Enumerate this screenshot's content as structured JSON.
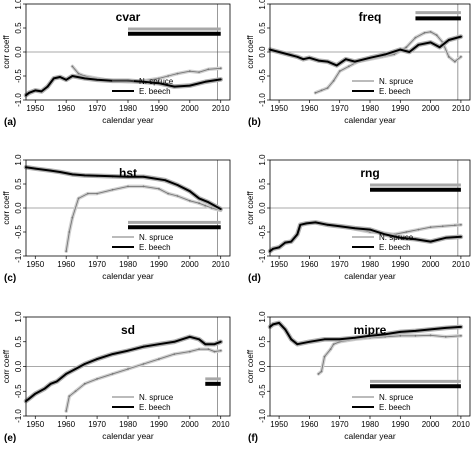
{
  "chart_data": [
    {
      "type": "line",
      "panel_label": "(a)",
      "title": "cvar",
      "xlabel": "calendar year",
      "ylabel": "corr coeff",
      "xlim": [
        1947,
        2013
      ],
      "ylim": [
        -1.0,
        1.0
      ],
      "xticks": [
        "1950",
        "1960",
        "1970",
        "1980",
        "1990",
        "2000",
        "2010"
      ],
      "yticks": [
        "-1.0",
        "-0.5",
        "0.0",
        "0.5",
        "1.0"
      ],
      "vline_year": 2009,
      "legend": {
        "position": "bottom-right"
      },
      "series": [
        {
          "name": "N. spruce",
          "x": [
            1962,
            1964,
            1966,
            1970,
            1975,
            1980,
            1985,
            1990,
            1993,
            1996,
            2000,
            2003,
            2006,
            2010
          ],
          "y": [
            -0.3,
            -0.45,
            -0.5,
            -0.55,
            -0.6,
            -0.62,
            -0.6,
            -0.55,
            -0.5,
            -0.45,
            -0.4,
            -0.42,
            -0.36,
            -0.34
          ]
        },
        {
          "name": "E. beech",
          "x": [
            1947,
            1948,
            1950,
            1952,
            1954,
            1956,
            1958,
            1960,
            1962,
            1966,
            1970,
            1975,
            1980,
            1985,
            1990,
            1995,
            2000,
            2005,
            2010
          ],
          "y": [
            -0.9,
            -0.85,
            -0.8,
            -0.82,
            -0.72,
            -0.55,
            -0.52,
            -0.58,
            -0.5,
            -0.55,
            -0.58,
            -0.6,
            -0.6,
            -0.62,
            -0.65,
            -0.72,
            -0.7,
            -0.62,
            -0.57
          ]
        }
      ],
      "significance_bars": [
        {
          "series": "N. spruce",
          "x": [
            1980,
            2010
          ],
          "y": 0.48
        },
        {
          "series": "E. beech",
          "x": [
            1980,
            2010
          ],
          "y": 0.38
        }
      ]
    },
    {
      "type": "line",
      "panel_label": "(b)",
      "title": "freq",
      "xlabel": "calendar year",
      "ylabel": "corr coeff",
      "xlim": [
        1947,
        2013
      ],
      "ylim": [
        -1.0,
        1.0
      ],
      "xticks": [
        "1950",
        "1960",
        "1970",
        "1980",
        "1990",
        "2000",
        "2010"
      ],
      "yticks": [
        "-1.0",
        "-0.5",
        "0.0",
        "0.5",
        "1.0"
      ],
      "vline_year": 2009,
      "legend": {
        "position": "bottom-right"
      },
      "series": [
        {
          "name": "N. spruce",
          "x": [
            1962,
            1964,
            1966,
            1968,
            1970,
            1973,
            1976,
            1980,
            1984,
            1988,
            1992,
            1995,
            1998,
            2000,
            2002,
            2004,
            2006,
            2008,
            2010
          ],
          "y": [
            -0.85,
            -0.8,
            -0.75,
            -0.6,
            -0.4,
            -0.3,
            -0.2,
            -0.15,
            -0.1,
            -0.05,
            0.1,
            0.3,
            0.4,
            0.42,
            0.35,
            0.2,
            -0.1,
            -0.2,
            -0.1
          ]
        },
        {
          "name": "E. beech",
          "x": [
            1947,
            1950,
            1953,
            1956,
            1958,
            1960,
            1963,
            1966,
            1969,
            1972,
            1975,
            1980,
            1985,
            1990,
            1993,
            1996,
            2000,
            2003,
            2006,
            2010
          ],
          "y": [
            0.05,
            0.0,
            -0.05,
            -0.1,
            -0.15,
            -0.12,
            -0.18,
            -0.2,
            -0.28,
            -0.15,
            -0.2,
            -0.12,
            -0.05,
            0.05,
            0.0,
            0.15,
            0.2,
            0.1,
            0.25,
            0.32
          ]
        }
      ],
      "significance_bars": [
        {
          "series": "N. spruce",
          "x": [
            1995,
            2010
          ],
          "y": 0.82
        },
        {
          "series": "E. beech",
          "x": [
            1995,
            2010
          ],
          "y": 0.7
        }
      ]
    },
    {
      "type": "line",
      "panel_label": "(c)",
      "title": "hst",
      "xlabel": "calendar year",
      "ylabel": "corr coeff",
      "xlim": [
        1947,
        2013
      ],
      "ylim": [
        -1.0,
        1.0
      ],
      "xticks": [
        "1950",
        "1960",
        "1970",
        "1980",
        "1990",
        "2000",
        "2010"
      ],
      "yticks": [
        "-1.0",
        "-0.5",
        "0.0",
        "0.5",
        "1.0"
      ],
      "vline_year": 2009,
      "legend": {
        "position": "bottom-right"
      },
      "series": [
        {
          "name": "N. spruce",
          "x": [
            1960,
            1961,
            1962,
            1964,
            1967,
            1970,
            1975,
            1980,
            1985,
            1990,
            1993,
            1996,
            2000,
            2003,
            2005,
            2007,
            2010
          ],
          "y": [
            -0.9,
            -0.5,
            -0.2,
            0.2,
            0.3,
            0.3,
            0.38,
            0.45,
            0.45,
            0.4,
            0.3,
            0.25,
            0.15,
            0.1,
            0.05,
            0.0,
            -0.05
          ]
        },
        {
          "name": "E. beech",
          "x": [
            1947,
            1950,
            1955,
            1958,
            1962,
            1966,
            1970,
            1975,
            1980,
            1985,
            1988,
            1992,
            1996,
            2000,
            2003,
            2006,
            2008,
            2010
          ],
          "y": [
            0.85,
            0.82,
            0.78,
            0.75,
            0.7,
            0.68,
            0.67,
            0.66,
            0.65,
            0.65,
            0.62,
            0.58,
            0.48,
            0.35,
            0.2,
            0.12,
            0.05,
            -0.02
          ]
        }
      ],
      "significance_bars": [
        {
          "series": "N. spruce",
          "x": [
            1980,
            2010
          ],
          "y": -0.3
        },
        {
          "series": "E. beech",
          "x": [
            1980,
            2010
          ],
          "y": -0.4
        }
      ]
    },
    {
      "type": "line",
      "panel_label": "(d)",
      "title": "rng",
      "xlabel": "calendar year",
      "ylabel": "corr coeff",
      "xlim": [
        1947,
        2013
      ],
      "ylim": [
        -1.0,
        1.0
      ],
      "xticks": [
        "1950",
        "1960",
        "1970",
        "1980",
        "1990",
        "2000",
        "2010"
      ],
      "yticks": [
        "-1.0",
        "-0.5",
        "0.0",
        "0.5",
        "1.0"
      ],
      "vline_year": 2009,
      "legend": {
        "position": "bottom-right"
      },
      "series": [
        {
          "name": "N. spruce",
          "x": [
            1962,
            1965,
            1968,
            1972,
            1976,
            1980,
            1984,
            1988,
            1992,
            1996,
            2000,
            2004,
            2008,
            2010
          ],
          "y": [
            -0.3,
            -0.35,
            -0.38,
            -0.4,
            -0.45,
            -0.5,
            -0.52,
            -0.55,
            -0.5,
            -0.45,
            -0.4,
            -0.38,
            -0.36,
            -0.35
          ]
        },
        {
          "name": "E. beech",
          "x": [
            1947,
            1948,
            1950,
            1952,
            1954,
            1956,
            1957,
            1959,
            1962,
            1966,
            1970,
            1975,
            1980,
            1985,
            1990,
            1995,
            2000,
            2005,
            2010
          ],
          "y": [
            -0.9,
            -0.85,
            -0.82,
            -0.72,
            -0.7,
            -0.55,
            -0.35,
            -0.32,
            -0.3,
            -0.35,
            -0.38,
            -0.42,
            -0.45,
            -0.55,
            -0.62,
            -0.65,
            -0.7,
            -0.62,
            -0.6
          ]
        }
      ],
      "significance_bars": [
        {
          "series": "N. spruce",
          "x": [
            1980,
            2010
          ],
          "y": 0.48
        },
        {
          "series": "E. beech",
          "x": [
            1980,
            2010
          ],
          "y": 0.38
        }
      ]
    },
    {
      "type": "line",
      "panel_label": "(e)",
      "title": "sd",
      "xlabel": "calendar year",
      "ylabel": "corr coeff",
      "xlim": [
        1947,
        2013
      ],
      "ylim": [
        -1.0,
        1.0
      ],
      "xticks": [
        "1950",
        "1960",
        "1970",
        "1980",
        "1990",
        "2000",
        "2010"
      ],
      "yticks": [
        "-1.0",
        "-0.5",
        "0.0",
        "0.5",
        "1.0"
      ],
      "vline_year": 2009,
      "legend": {
        "position": "bottom-right"
      },
      "series": [
        {
          "name": "N. spruce",
          "x": [
            1960,
            1961,
            1963,
            1966,
            1970,
            1975,
            1980,
            1985,
            1990,
            1995,
            2000,
            2003,
            2006,
            2008,
            2010
          ],
          "y": [
            -0.9,
            -0.6,
            -0.5,
            -0.35,
            -0.25,
            -0.15,
            -0.05,
            0.05,
            0.15,
            0.25,
            0.3,
            0.35,
            0.35,
            0.3,
            0.32
          ]
        },
        {
          "name": "E. beech",
          "x": [
            1947,
            1948,
            1950,
            1953,
            1955,
            1957,
            1960,
            1963,
            1966,
            1970,
            1975,
            1980,
            1985,
            1990,
            1995,
            2000,
            2003,
            2005,
            2008,
            2010
          ],
          "y": [
            -0.7,
            -0.65,
            -0.55,
            -0.45,
            -0.35,
            -0.3,
            -0.15,
            -0.05,
            0.05,
            0.15,
            0.25,
            0.32,
            0.4,
            0.45,
            0.5,
            0.6,
            0.55,
            0.45,
            0.45,
            0.5
          ]
        }
      ],
      "significance_bars": [
        {
          "series": "N. spruce",
          "x": [
            2005,
            2010
          ],
          "y": -0.25
        },
        {
          "series": "E. beech",
          "x": [
            2005,
            2010
          ],
          "y": -0.35
        }
      ]
    },
    {
      "type": "line",
      "panel_label": "(f)",
      "title": "mipre",
      "xlabel": "calendar year",
      "ylabel": "corr coeff",
      "xlim": [
        1947,
        2013
      ],
      "ylim": [
        -1.0,
        1.0
      ],
      "xticks": [
        "1950",
        "1960",
        "1970",
        "1980",
        "1990",
        "2000",
        "2010"
      ],
      "yticks": [
        "-1.0",
        "-0.5",
        "0.0",
        "0.5",
        "1.0"
      ],
      "vline_year": 2009,
      "legend": {
        "position": "bottom-right"
      },
      "series": [
        {
          "name": "N. spruce",
          "x": [
            1963,
            1964,
            1965,
            1967,
            1968,
            1970,
            1975,
            1980,
            1985,
            1990,
            1995,
            2000,
            2005,
            2010
          ],
          "y": [
            -0.15,
            -0.1,
            0.2,
            0.35,
            0.45,
            0.5,
            0.55,
            0.58,
            0.6,
            0.62,
            0.62,
            0.63,
            0.6,
            0.62
          ]
        },
        {
          "name": "E. beech",
          "x": [
            1947,
            1948,
            1950,
            1952,
            1954,
            1956,
            1960,
            1965,
            1970,
            1975,
            1980,
            1985,
            1990,
            1995,
            2000,
            2005,
            2010
          ],
          "y": [
            0.8,
            0.85,
            0.88,
            0.75,
            0.55,
            0.45,
            0.5,
            0.55,
            0.55,
            0.58,
            0.62,
            0.65,
            0.7,
            0.72,
            0.75,
            0.78,
            0.8
          ]
        }
      ],
      "significance_bars": [
        {
          "series": "N. spruce",
          "x": [
            1980,
            2010
          ],
          "y": -0.3
        },
        {
          "series": "E. beech",
          "x": [
            1980,
            2010
          ],
          "y": -0.4
        }
      ]
    }
  ]
}
